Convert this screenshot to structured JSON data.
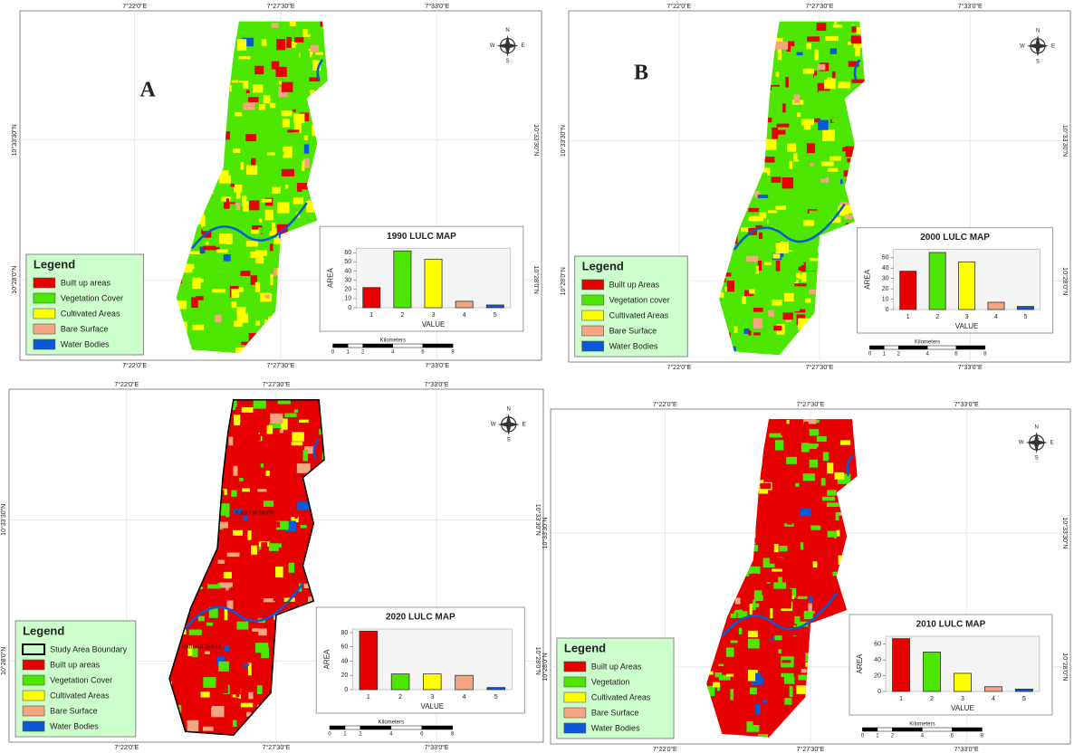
{
  "panels": [
    {
      "label": "A",
      "coords": {
        "top": [
          "7°22'0\"E",
          "7°27'30\"E",
          "7°33'0\"E"
        ],
        "bottom": [
          "7°22'0\"E",
          "7°27'30\"E",
          "7°33'0\"E"
        ],
        "left": [
          "10°33'30\"N",
          "10°28'0\"N"
        ],
        "right": [
          "10°33'30\"N",
          "10°28'0\"N"
        ]
      },
      "compass": [
        "N",
        "E",
        "S",
        "W"
      ],
      "legend": {
        "title": "Legend",
        "items": [
          {
            "label": "Built up areas",
            "color": "#e60000"
          },
          {
            "label": "Vegetation Cover",
            "color": "#4ce600"
          },
          {
            "label": "Cultivated Areas",
            "color": "#ffff00"
          },
          {
            "label": "Bare Surface",
            "color": "#f4a582"
          },
          {
            "label": "Water Bodies",
            "color": "#0a5ad8"
          }
        ]
      },
      "scale": {
        "title": "Kilometers",
        "ticks": [
          0,
          1,
          2,
          4,
          6,
          8
        ]
      }
    },
    {
      "label": "B",
      "coords": {
        "top": [
          "7°22'0\"E",
          "7°27'30\"E",
          "7°33'0\"E"
        ],
        "bottom": [
          "7°22'0\"E",
          "7°27'30\"E",
          "7°33'0\"E"
        ],
        "left": [
          "10°33'30\"N",
          "10°28'0\"N"
        ],
        "right": [
          "10°33'30\"N",
          "10°28'0\"N"
        ]
      },
      "compass": [
        "N",
        "E",
        "S",
        "W"
      ],
      "legend": {
        "title": "Legend",
        "items": [
          {
            "label": "Built  up Areas",
            "color": "#e60000"
          },
          {
            "label": "Vegetation cover",
            "color": "#4ce600"
          },
          {
            "label": "Cultivated Areas",
            "color": "#ffff00"
          },
          {
            "label": "Bare Surface",
            "color": "#f4a582"
          },
          {
            "label": "Water Bodies",
            "color": "#0a5ad8"
          }
        ]
      },
      "scale": {
        "title": "Kilometers",
        "ticks": [
          0,
          1,
          2,
          4,
          6,
          8
        ]
      }
    },
    {
      "places": [
        "Kaduna North",
        "Kaduna South"
      ],
      "coords": {
        "top": [
          "7°22'0\"E",
          "7°27'30\"E",
          "7°33'0\"E"
        ],
        "bottom": [
          "7°22'0\"E",
          "7°27'30\"E",
          "7°33'0\"E"
        ],
        "left": [
          "10°33'30\"N",
          "10°28'0\"N"
        ],
        "right": [
          "10°33'30\"N",
          "10°28'0\"N"
        ]
      },
      "compass": [
        "N",
        "E",
        "S",
        "W"
      ],
      "legend": {
        "title": "Legend",
        "items": [
          {
            "label": "Study Area Boundary",
            "color": "#000000",
            "style": "outline"
          },
          {
            "label": "Built up areas",
            "color": "#e60000"
          },
          {
            "label": "Vegetation Cover",
            "color": "#4ce600"
          },
          {
            "label": "Cultivated Areas",
            "color": "#ffff00"
          },
          {
            "label": "Bare Surface",
            "color": "#f4a582"
          },
          {
            "label": "Water Bodies",
            "color": "#0a5ad8"
          }
        ]
      },
      "scale": {
        "title": "Kilometers",
        "ticks": [
          0,
          1,
          2,
          4,
          6,
          8
        ]
      }
    },
    {
      "coords": {
        "top": [
          "7°22'0\"E",
          "7°27'30\"E",
          "7°33'0\"E"
        ],
        "bottom": [
          "7°22'0\"E",
          "7°27'30\"E",
          "7°33'0\"E"
        ],
        "left": [
          "10°33'30\"N",
          "10°28'0\"N"
        ],
        "right": [
          "10°33'30\"N",
          "10°28'0\"N"
        ]
      },
      "compass": [
        "N",
        "E",
        "S",
        "W"
      ],
      "legend": {
        "title": "Legend",
        "items": [
          {
            "label": "Built up Areas",
            "color": "#e60000"
          },
          {
            "label": "Vegetation",
            "color": "#4ce600"
          },
          {
            "label": "Cultivated Areas",
            "color": "#ffff00"
          },
          {
            "label": "Bare Surface",
            "color": "#f4a582"
          },
          {
            "label": "Water Bodies",
            "color": "#0a5ad8"
          }
        ]
      },
      "scale": {
        "title": "Kilometers",
        "ticks": [
          0,
          1,
          2,
          4,
          6,
          8
        ]
      }
    }
  ],
  "chart_data": [
    {
      "type": "bar",
      "title": "1990 LULC MAP",
      "x_label": "VALUE",
      "y_label": "AREA",
      "categories": [
        "1",
        "2",
        "3",
        "4",
        "5"
      ],
      "values": [
        22,
        62,
        53,
        7,
        3
      ],
      "colors": [
        "#e60000",
        "#4ce600",
        "#ffff00",
        "#f4a582",
        "#0a5ad8"
      ],
      "ylim": [
        0,
        65
      ],
      "yticks": [
        0,
        10,
        20,
        30,
        40,
        50,
        60
      ]
    },
    {
      "type": "bar",
      "title": "2000 LULC MAP",
      "x_label": "VALUE",
      "y_label": "AREA",
      "categories": [
        "1",
        "2",
        "3",
        "4",
        "5"
      ],
      "values": [
        37,
        55,
        46,
        7,
        3
      ],
      "colors": [
        "#e60000",
        "#4ce600",
        "#ffff00",
        "#f4a582",
        "#0a5ad8"
      ],
      "ylim": [
        0,
        58
      ],
      "yticks": [
        0,
        10,
        20,
        30,
        40,
        50
      ]
    },
    {
      "type": "bar",
      "title": "2020 LULC MAP",
      "x_label": "VALUE",
      "y_label": "AREA",
      "categories": [
        "1",
        "2",
        "3",
        "4",
        "5"
      ],
      "values": [
        82,
        22,
        22,
        20,
        3
      ],
      "colors": [
        "#e60000",
        "#4ce600",
        "#ffff00",
        "#f4a582",
        "#0a5ad8"
      ],
      "ylim": [
        0,
        85
      ],
      "yticks": [
        0,
        20,
        40,
        60,
        80
      ]
    },
    {
      "type": "bar",
      "title": "2010 LULC MAP",
      "x_label": "VALUE",
      "y_label": "AREA",
      "categories": [
        "1",
        "2",
        "3",
        "4",
        "5"
      ],
      "values": [
        67,
        50,
        23,
        6,
        3
      ],
      "colors": [
        "#e60000",
        "#4ce600",
        "#ffff00",
        "#f4a582",
        "#0a5ad8"
      ],
      "ylim": [
        0,
        70
      ],
      "yticks": [
        0,
        20,
        40,
        60
      ]
    }
  ]
}
